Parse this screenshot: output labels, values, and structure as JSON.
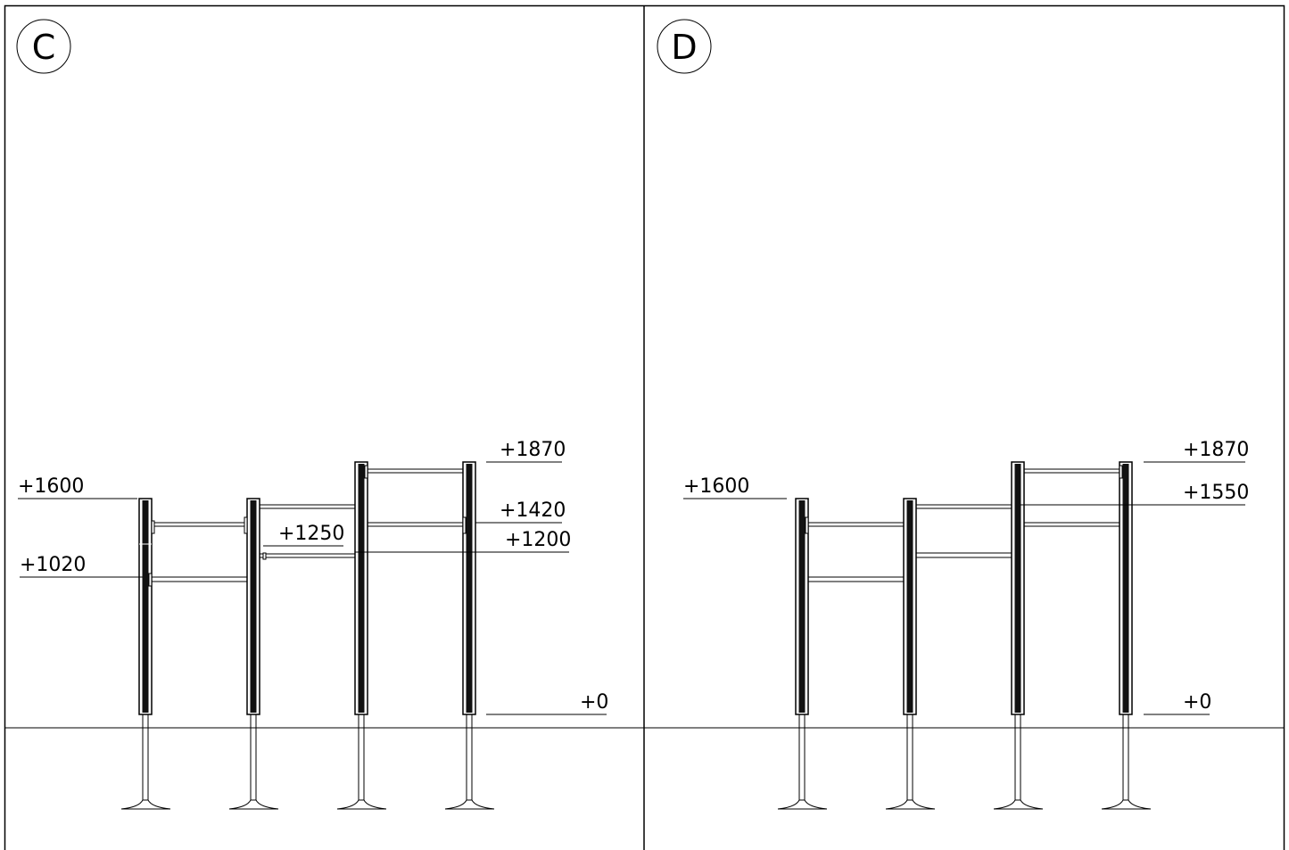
{
  "panels": [
    {
      "badge": "C",
      "labels": {
        "p1600": "+1600",
        "p1020": "+1020",
        "p1250": "+1250",
        "p1870": "+1870",
        "p1420": "+1420",
        "p1200": "+1200",
        "p0": "+0"
      }
    },
    {
      "badge": "D",
      "labels": {
        "p1600": "+1600",
        "p1870": "+1870",
        "p1550": "+1550",
        "p0": "+0"
      }
    }
  ]
}
